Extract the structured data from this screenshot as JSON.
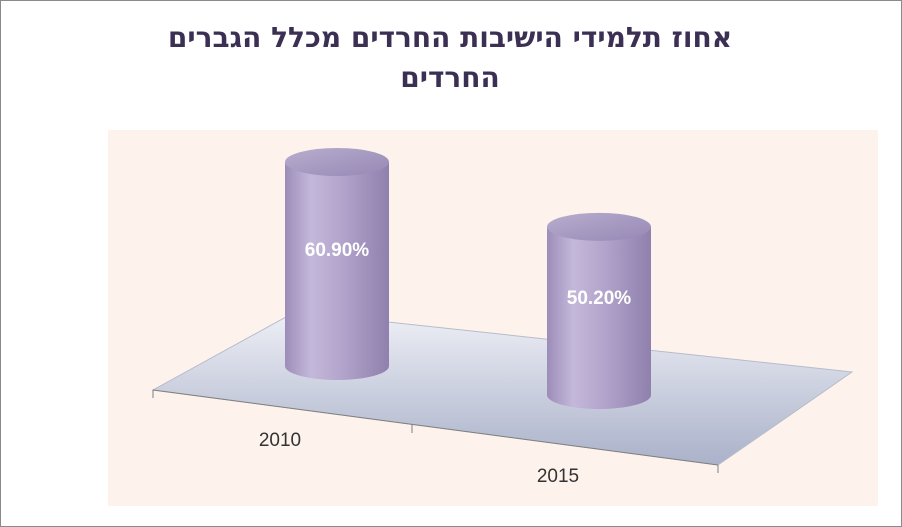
{
  "chart_data": {
    "type": "bar",
    "style": "3d-cylinder",
    "title_lines": [
      "אחוז תלמידי הישיבות החרדים מכלל הגברים",
      "החרדים"
    ],
    "categories": [
      "2010",
      "2015"
    ],
    "values": [
      60.9,
      50.2
    ],
    "data_labels": [
      "60.90%",
      "50.20%"
    ],
    "ylim": [
      0,
      70
    ],
    "grid": false,
    "legend": "none",
    "colors": {
      "bar": "#b3a5cc",
      "bar_top": "#a497bf",
      "plot_background": "#fdf3ec",
      "floor": "#c7ccdc",
      "title": "#3b3054",
      "data_label": "#ffffff",
      "tick_label": "#333333"
    }
  }
}
